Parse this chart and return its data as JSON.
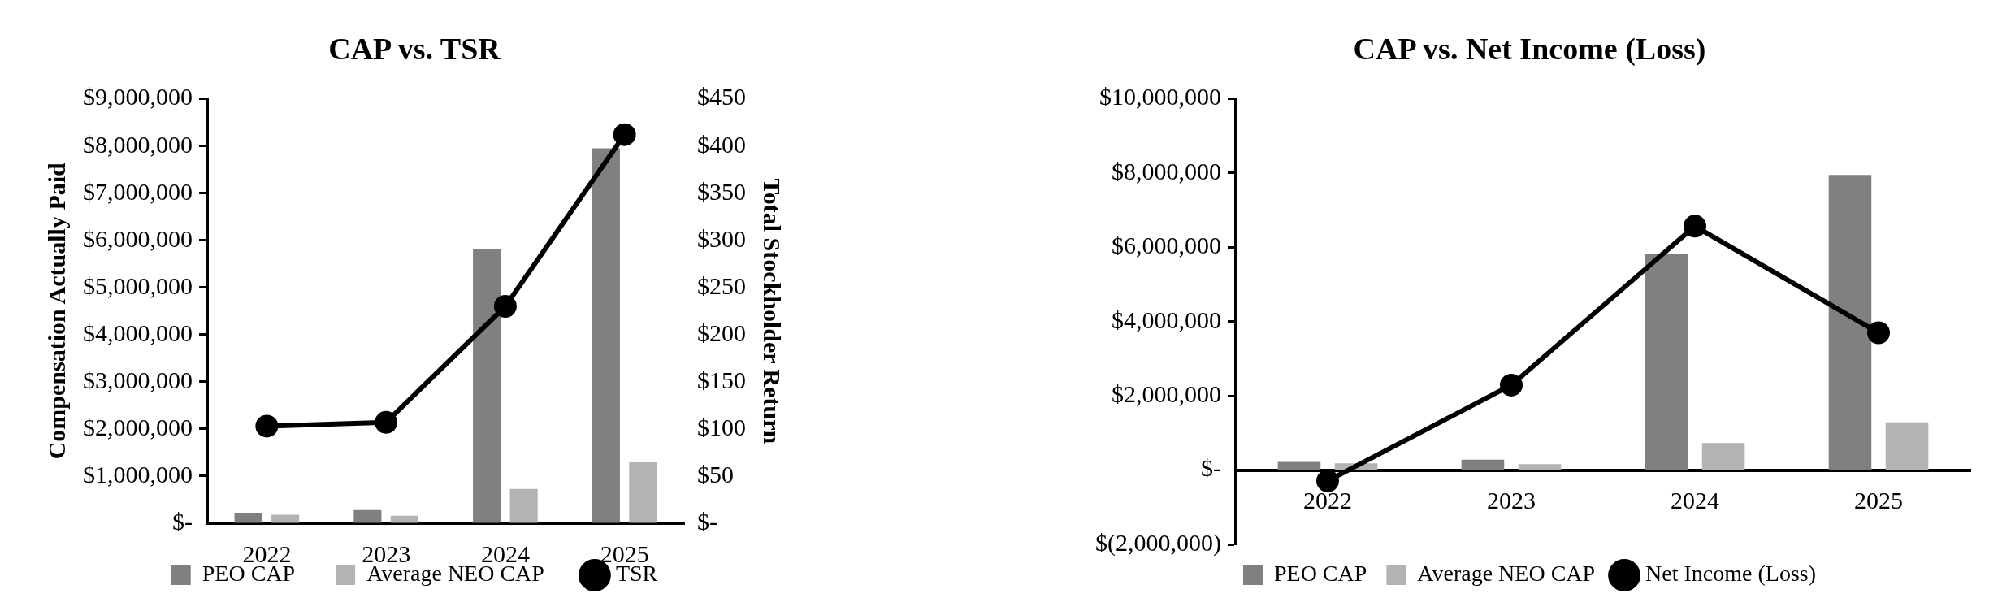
{
  "chart_data": [
    {
      "type": "bar",
      "title": "CAP vs. TSR",
      "ylabel": "Compensation Actually Paid",
      "y2label": "Total Stockholder Return",
      "categories": [
        "2022",
        "2023",
        "2024",
        "2025"
      ],
      "series": [
        {
          "name": "PEO CAP",
          "color": "#808080",
          "values": [
            220000,
            280000,
            5820000,
            7950000
          ]
        },
        {
          "name": "Average NEO CAP",
          "color": "#b3b3b3",
          "values": [
            180000,
            160000,
            730000,
            1290000
          ]
        },
        {
          "name": "TSR",
          "type": "line",
          "axis": "y2",
          "color": "#000000",
          "values": [
            103,
            107,
            230,
            412
          ]
        }
      ],
      "ylim": [
        0,
        9000000
      ],
      "yticks": [
        {
          "value": 0,
          "label": "$-"
        },
        {
          "value": 1000000,
          "label": "$1,000,000"
        },
        {
          "value": 2000000,
          "label": "$2,000,000"
        },
        {
          "value": 3000000,
          "label": "$3,000,000"
        },
        {
          "value": 4000000,
          "label": "$4,000,000"
        },
        {
          "value": 5000000,
          "label": "$5,000,000"
        },
        {
          "value": 6000000,
          "label": "$6,000,000"
        },
        {
          "value": 7000000,
          "label": "$7,000,000"
        },
        {
          "value": 8000000,
          "label": "$8,000,000"
        },
        {
          "value": 9000000,
          "label": "$9,000,000"
        }
      ],
      "y2lim": [
        0,
        450
      ],
      "y2ticks": [
        {
          "value": 0,
          "label": "$-"
        },
        {
          "value": 50,
          "label": "$50"
        },
        {
          "value": 100,
          "label": "$100"
        },
        {
          "value": 150,
          "label": "$150"
        },
        {
          "value": 200,
          "label": "$200"
        },
        {
          "value": 250,
          "label": "$250"
        },
        {
          "value": 300,
          "label": "$300"
        },
        {
          "value": 350,
          "label": "$350"
        },
        {
          "value": 400,
          "label": "$400"
        },
        {
          "value": 450,
          "label": "$450"
        }
      ],
      "legend": "bottom",
      "marker": "circle"
    },
    {
      "type": "bar",
      "title": "CAP vs. Net Income (Loss)",
      "categories": [
        "2022",
        "2023",
        "2024",
        "2025"
      ],
      "series": [
        {
          "name": "PEO CAP",
          "color": "#808080",
          "values": [
            220000,
            280000,
            5820000,
            7950000
          ]
        },
        {
          "name": "Average NEO CAP",
          "color": "#b3b3b3",
          "values": [
            180000,
            160000,
            730000,
            1290000
          ]
        },
        {
          "name": "Net Income (Loss)",
          "type": "line",
          "color": "#000000",
          "values": [
            -290000,
            2290000,
            6570000,
            3700000
          ]
        }
      ],
      "ylim": [
        -2000000,
        10000000
      ],
      "yticks": [
        {
          "value": -2000000,
          "label": "$(2,000,000)"
        },
        {
          "value": 0,
          "label": "$-"
        },
        {
          "value": 2000000,
          "label": "$2,000,000"
        },
        {
          "value": 4000000,
          "label": "$4,000,000"
        },
        {
          "value": 6000000,
          "label": "$6,000,000"
        },
        {
          "value": 8000000,
          "label": "$8,000,000"
        },
        {
          "value": 10000000,
          "label": "$10,000,000"
        }
      ],
      "legend": "bottom",
      "marker": "circle"
    }
  ]
}
